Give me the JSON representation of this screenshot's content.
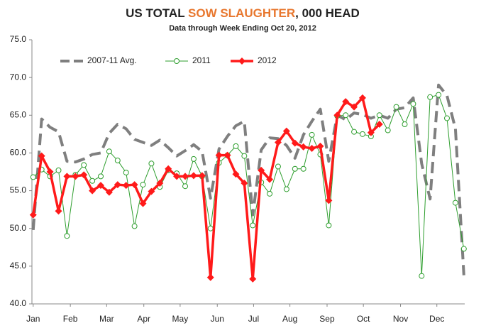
{
  "chart_data": {
    "type": "line",
    "title": [
      "US TOTAL",
      "SOW SLAUGHTER",
      ", 000 HEAD"
    ],
    "title_highlight_color": "#e8772e",
    "subtitle": "Data through Week Ending Oct 20, 2012",
    "x": [
      1,
      2,
      3,
      4,
      5,
      6,
      7,
      8,
      9,
      10,
      11,
      12,
      13,
      14,
      15,
      16,
      17,
      18,
      19,
      20,
      21,
      22,
      23,
      24,
      25,
      26,
      27,
      28,
      29,
      30,
      31,
      32,
      33,
      34,
      35,
      36,
      37,
      38,
      39,
      40,
      41,
      42,
      43,
      44,
      45,
      46,
      47,
      48,
      49,
      50,
      51,
      52
    ],
    "xlim": [
      0.85,
      52.1
    ],
    "xticks": [
      {
        "value": 1,
        "label": "Jan"
      },
      {
        "value": 5.4,
        "label": "Feb"
      },
      {
        "value": 9.7,
        "label": "Mar"
      },
      {
        "value": 14.1,
        "label": "Apr"
      },
      {
        "value": 18.4,
        "label": "May"
      },
      {
        "value": 22.8,
        "label": "Jun"
      },
      {
        "value": 27.1,
        "label": "Jul"
      },
      {
        "value": 31.4,
        "label": "Aug"
      },
      {
        "value": 35.8,
        "label": "Sep"
      },
      {
        "value": 40.1,
        "label": "Oct"
      },
      {
        "value": 44.5,
        "label": "Nov"
      },
      {
        "value": 48.8,
        "label": "Dec"
      }
    ],
    "ylim": [
      40,
      75
    ],
    "yticks": [
      {
        "value": 40,
        "label": "40.0"
      },
      {
        "value": 45,
        "label": "45.0"
      },
      {
        "value": 50,
        "label": "50.0"
      },
      {
        "value": 55,
        "label": "55.0"
      },
      {
        "value": 60,
        "label": "60.0"
      },
      {
        "value": 65,
        "label": "65.0"
      },
      {
        "value": 70,
        "label": "70.0"
      },
      {
        "value": 75,
        "label": "75.0"
      }
    ],
    "grid": false,
    "legend": "top-left",
    "series": [
      {
        "name": "2007-11 Avg.",
        "color": "#7f7f7f",
        "style": "dashed",
        "marker": "none",
        "values": [
          49.8,
          64.5,
          63.4,
          62.8,
          58.9,
          58.8,
          59.2,
          59.8,
          60.0,
          62.6,
          63.8,
          63.2,
          61.8,
          61.4,
          61.0,
          61.7,
          60.7,
          59.6,
          60.3,
          61.1,
          60.2,
          54.0,
          60.5,
          62.2,
          63.6,
          64.2,
          51.8,
          60.4,
          62.0,
          61.9,
          61.0,
          59.3,
          62.4,
          64.2,
          65.8,
          58.9,
          65.0,
          64.4,
          65.3,
          65.1,
          64.6,
          65.0,
          64.6,
          65.8,
          66.0,
          67.3,
          58.6,
          53.9,
          69.0,
          67.6,
          63.2,
          43.8
        ]
      },
      {
        "name": "2011",
        "color": "#2e9e2e",
        "style": "solid",
        "marker": "circle",
        "values": [
          56.8,
          57.8,
          56.9,
          57.7,
          49.0,
          57.1,
          58.4,
          56.3,
          56.9,
          60.2,
          59.0,
          57.4,
          50.3,
          55.8,
          58.6,
          55.5,
          57.7,
          57.3,
          55.6,
          59.2,
          56.9,
          50.0,
          58.7,
          59.7,
          60.9,
          59.6,
          50.4,
          56.1,
          54.6,
          58.2,
          55.2,
          57.9,
          57.9,
          62.4,
          59.8,
          50.4,
          64.9,
          65.0,
          62.8,
          62.5,
          62.2,
          65.0,
          63.0,
          66.1,
          63.8,
          66.5,
          43.7,
          67.4,
          67.7,
          64.6,
          53.4,
          47.3
        ]
      },
      {
        "name": "2012",
        "color": "#ff1a1a",
        "style": "bold",
        "marker": "diamond",
        "values": [
          51.8,
          59.6,
          57.5,
          52.3,
          56.9,
          56.9,
          57.1,
          55.0,
          55.7,
          54.8,
          55.8,
          55.7,
          55.8,
          53.3,
          54.9,
          56.0,
          57.9,
          56.9,
          56.9,
          57.0,
          57.0,
          43.5,
          59.7,
          59.7,
          57.2,
          56.0,
          43.3,
          57.7,
          56.5,
          61.4,
          62.9,
          61.3,
          60.8,
          60.6,
          60.9,
          53.7,
          65.0,
          66.8,
          66.1,
          67.3,
          62.7,
          63.8,
          null,
          null,
          null,
          null,
          null,
          null,
          null,
          null,
          null,
          null
        ]
      }
    ]
  }
}
